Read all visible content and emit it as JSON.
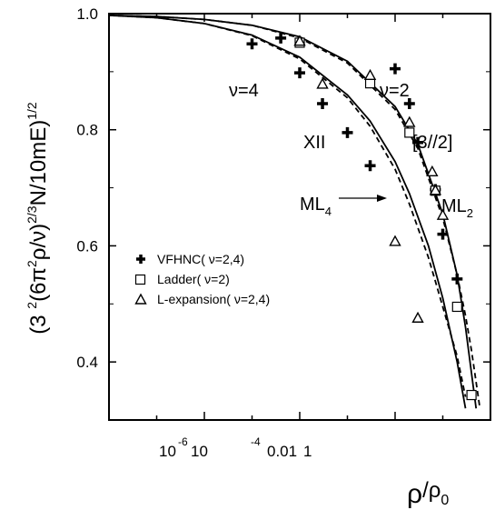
{
  "chart_data": {
    "type": "line",
    "title": "",
    "ylabel": "(3π²ρ/ν)^{2/3}N/10mE)^{1/2}",
    "ylabel_parts": [
      "(3",
      " ",
      "2",
      "(6π",
      "2",
      "ρ/ν)",
      "2/3",
      "N/10mE)",
      "1/2"
    ],
    "xlabel_parts": [
      "ρ",
      "/ρ",
      "0"
    ],
    "x_scale": "log",
    "xlim": [
      1e-08,
      1
    ],
    "ylim": [
      0.3,
      1.0
    ],
    "x_tick_labels": [
      "10",
      "-6",
      "10",
      "-4",
      "0.01",
      "1"
    ],
    "y_ticks": [
      0.4,
      0.6,
      0.8,
      1.0
    ],
    "y_tick_labels": [
      "0.4",
      "0.6",
      "0.8",
      "1.0"
    ],
    "series": [
      {
        "name": "",
        "style": "solid",
        "x": [
          1e-08,
          1e-07,
          1e-06,
          1e-05,
          0.0001,
          0.001,
          0.003,
          0.01,
          0.02,
          0.05,
          0.1,
          0.2,
          0.3
        ],
        "y": [
          0.997,
          0.993,
          0.983,
          0.963,
          0.925,
          0.86,
          0.815,
          0.745,
          0.69,
          0.6,
          0.51,
          0.4,
          0.32
        ]
      },
      {
        "name": "",
        "style": "solid",
        "x": [
          1e-08,
          1e-07,
          1e-06,
          1e-05,
          0.0001,
          0.001,
          0.01,
          0.03,
          0.1,
          0.2,
          0.3,
          0.5
        ],
        "y": [
          0.997,
          0.995,
          0.99,
          0.98,
          0.96,
          0.918,
          0.84,
          0.775,
          0.655,
          0.55,
          0.46,
          0.32
        ]
      },
      {
        "name": "",
        "style": "dashed",
        "x": [
          1e-08,
          1e-07,
          1e-06,
          1e-05,
          0.0001,
          0.001,
          0.003,
          0.01,
          0.02,
          0.05,
          0.1,
          0.2,
          0.3
        ],
        "y": [
          0.997,
          0.993,
          0.983,
          0.962,
          0.922,
          0.855,
          0.806,
          0.732,
          0.672,
          0.58,
          0.495,
          0.41,
          0.34
        ]
      },
      {
        "name": "",
        "style": "dashed",
        "x": [
          1e-08,
          1e-07,
          1e-06,
          1e-05,
          0.0001,
          0.001,
          0.01,
          0.03,
          0.1,
          0.2,
          0.3,
          0.4,
          0.6
        ],
        "y": [
          0.997,
          0.995,
          0.99,
          0.98,
          0.958,
          0.915,
          0.835,
          0.768,
          0.648,
          0.55,
          0.48,
          0.42,
          0.32
        ]
      }
    ],
    "markers": [
      {
        "name": "VFHNC( ν=2,4)",
        "symbol": "plus",
        "x": [
          1e-05,
          4e-05,
          0.0001,
          0.0003,
          0.001,
          0.003,
          0.01,
          0.02,
          0.03,
          0.07,
          0.1,
          0.2
        ],
        "y": [
          0.948,
          0.958,
          0.898,
          0.845,
          0.795,
          0.738,
          0.905,
          0.845,
          0.778,
          0.697,
          0.62,
          0.543
        ]
      },
      {
        "name": "Ladder( ν=2)",
        "symbol": "square",
        "x": [
          0.0001,
          0.003,
          0.02,
          0.07,
          0.2,
          0.4
        ],
        "y": [
          0.95,
          0.88,
          0.795,
          0.695,
          0.495,
          0.343
        ]
      },
      {
        "name": "L-expansion( ν=2,4)",
        "symbol": "triangle",
        "x": [
          0.0001,
          0.0003,
          0.003,
          0.02,
          0.06,
          0.1,
          0.01,
          0.03,
          0.07
        ],
        "y": [
          0.952,
          0.878,
          0.893,
          0.812,
          0.727,
          0.652,
          0.607,
          0.475,
          0.695
        ]
      }
    ],
    "annotations": [
      {
        "text": "ν=4",
        "x": 1e-05,
        "y": 0.86
      },
      {
        "text": "ν=2",
        "x": 0.01,
        "y": 0.86
      },
      {
        "text": "XII",
        "x": 0.0006,
        "y": 0.78
      },
      {
        "text": "[3//2]",
        "x": 0.05,
        "y": 0.785
      },
      {
        "text": "ML",
        "sub": "4",
        "x": 0.0004,
        "y": 0.65
      },
      {
        "text": "ML",
        "sub": "2",
        "x": 0.3,
        "y": 0.65
      }
    ],
    "legend": {
      "position": "left"
    }
  }
}
